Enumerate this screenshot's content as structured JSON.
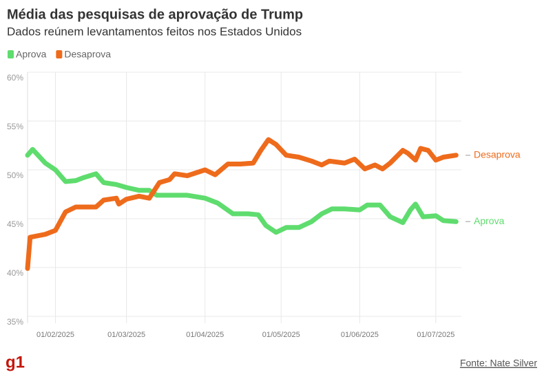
{
  "chart_data": {
    "type": "line",
    "title": "Média das pesquisas de aprovação de Trump",
    "subtitle": "Dados reúnem levantamentos feitos nos Estados Unidos",
    "source": "Fonte: Nate Silver",
    "logo": "g1",
    "grid": true,
    "legend": "top-left",
    "xlim": [
      "2025-01-21",
      "2025-07-10"
    ],
    "xticks": [
      {
        "value": "2025-02-01",
        "label": "01/02/2025"
      },
      {
        "value": "2025-03-01",
        "label": "01/03/2025"
      },
      {
        "value": "2025-04-01",
        "label": "01/04/2025"
      },
      {
        "value": "2025-05-01",
        "label": "01/05/2025"
      },
      {
        "value": "2025-06-01",
        "label": "01/06/2025"
      },
      {
        "value": "2025-07-01",
        "label": "01/07/2025"
      }
    ],
    "ylim": [
      35,
      60
    ],
    "yticks": [
      {
        "value": 35,
        "label": "35%"
      },
      {
        "value": 40,
        "label": "40%"
      },
      {
        "value": 45,
        "label": "45%"
      },
      {
        "value": 50,
        "label": "50%"
      },
      {
        "value": 55,
        "label": "55%"
      },
      {
        "value": 60,
        "label": "60%"
      }
    ],
    "series": [
      {
        "name": "Aprova",
        "color": "#5fdc6e",
        "x": [
          "2025-01-21",
          "2025-01-23",
          "2025-01-28",
          "2025-02-01",
          "2025-02-05",
          "2025-02-09",
          "2025-02-12",
          "2025-02-17",
          "2025-02-20",
          "2025-02-25",
          "2025-03-01",
          "2025-03-06",
          "2025-03-10",
          "2025-03-13",
          "2025-03-18",
          "2025-03-25",
          "2025-04-01",
          "2025-04-06",
          "2025-04-12",
          "2025-04-18",
          "2025-04-22",
          "2025-04-25",
          "2025-04-29",
          "2025-05-03",
          "2025-05-08",
          "2025-05-13",
          "2025-05-17",
          "2025-05-21",
          "2025-05-26",
          "2025-06-01",
          "2025-06-04",
          "2025-06-09",
          "2025-06-13",
          "2025-06-18",
          "2025-06-21",
          "2025-06-23",
          "2025-06-26",
          "2025-07-01",
          "2025-07-04",
          "2025-07-09"
        ],
        "values": [
          51.5,
          52.1,
          50.7,
          50.0,
          48.8,
          48.9,
          49.2,
          49.6,
          48.7,
          48.5,
          48.2,
          47.9,
          47.9,
          47.4,
          47.4,
          47.4,
          47.1,
          46.6,
          45.5,
          45.5,
          45.4,
          44.3,
          43.6,
          44.1,
          44.1,
          44.7,
          45.5,
          46.0,
          46.0,
          45.9,
          46.4,
          46.4,
          45.2,
          44.6,
          45.9,
          46.5,
          45.2,
          45.3,
          44.8,
          44.7
        ]
      },
      {
        "name": "Desaprova",
        "color": "#ee6b1c",
        "x": [
          "2025-01-21",
          "2025-01-22",
          "2025-01-28",
          "2025-02-01",
          "2025-02-05",
          "2025-02-09",
          "2025-02-17",
          "2025-02-20",
          "2025-02-25",
          "2025-02-26",
          "2025-03-01",
          "2025-03-06",
          "2025-03-10",
          "2025-03-14",
          "2025-03-18",
          "2025-03-20",
          "2025-03-25",
          "2025-04-01",
          "2025-04-05",
          "2025-04-10",
          "2025-04-15",
          "2025-04-20",
          "2025-04-23",
          "2025-04-26",
          "2025-04-29",
          "2025-05-03",
          "2025-05-08",
          "2025-05-13",
          "2025-05-17",
          "2025-05-20",
          "2025-05-26",
          "2025-05-30",
          "2025-06-03",
          "2025-06-07",
          "2025-06-10",
          "2025-06-13",
          "2025-06-18",
          "2025-06-20",
          "2025-06-23",
          "2025-06-25",
          "2025-06-28",
          "2025-07-01",
          "2025-07-04",
          "2025-07-09"
        ],
        "values": [
          39.9,
          43.1,
          43.4,
          43.8,
          45.7,
          46.2,
          46.2,
          46.9,
          47.1,
          46.5,
          47.0,
          47.3,
          47.1,
          48.7,
          49.0,
          49.6,
          49.4,
          50.0,
          49.5,
          50.6,
          50.6,
          50.7,
          52.0,
          53.1,
          52.6,
          51.5,
          51.3,
          50.9,
          50.5,
          50.9,
          50.7,
          51.1,
          50.1,
          50.5,
          50.1,
          50.7,
          52.0,
          51.7,
          51.0,
          52.2,
          52.0,
          51.0,
          51.3,
          51.5
        ]
      }
    ]
  }
}
